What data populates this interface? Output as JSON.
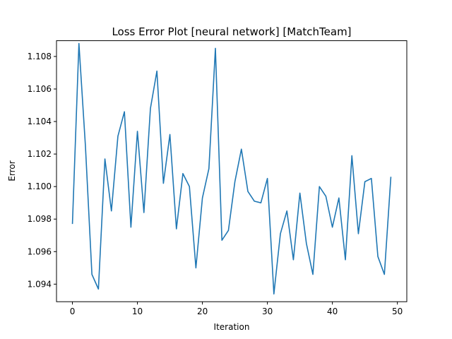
{
  "chart_data": {
    "type": "line",
    "title": "Loss Error Plot [neural network] [MatchTeam]",
    "xlabel": "Iteration",
    "ylabel": "Error",
    "xlim": [
      -2.45,
      51.45
    ],
    "ylim": [
      1.09292,
      1.10897
    ],
    "xticks": [
      0,
      10,
      20,
      30,
      40,
      50
    ],
    "xtick_labels": [
      "0",
      "10",
      "20",
      "30",
      "40",
      "50"
    ],
    "yticks": [
      1.094,
      1.096,
      1.098,
      1.1,
      1.102,
      1.104,
      1.106,
      1.108
    ],
    "ytick_labels": [
      "1.094",
      "1.096",
      "1.098",
      "1.100",
      "1.102",
      "1.104",
      "1.106",
      "1.108"
    ],
    "grid": false,
    "series": [
      {
        "color": "#1f77b4",
        "x": [
          0,
          1,
          2,
          3,
          4,
          5,
          6,
          7,
          8,
          9,
          10,
          11,
          12,
          13,
          14,
          15,
          16,
          17,
          18,
          19,
          20,
          21,
          22,
          23,
          24,
          25,
          26,
          27,
          28,
          29,
          30,
          31,
          32,
          33,
          34,
          35,
          36,
          37,
          38,
          39,
          40,
          41,
          42,
          43,
          44,
          45,
          46,
          47,
          48,
          49
        ],
        "y": [
          1.0977,
          1.1088,
          1.1025,
          1.0946,
          1.0937,
          1.1017,
          1.0985,
          1.1031,
          1.1046,
          1.0975,
          1.1034,
          1.0984,
          1.1048,
          1.1071,
          1.1002,
          1.1032,
          1.0974,
          1.1008,
          1.1,
          1.095,
          1.0993,
          1.1011,
          1.1085,
          1.0967,
          1.0973,
          1.1003,
          1.1023,
          1.0997,
          1.0991,
          1.099,
          1.1005,
          1.0934,
          1.0971,
          1.0985,
          1.0955,
          1.0996,
          1.0965,
          1.0946,
          1.1,
          1.0994,
          1.0975,
          1.0993,
          1.0955,
          1.1019,
          1.0971,
          1.1003,
          1.1005,
          1.0957,
          1.0946,
          1.1006
        ]
      }
    ]
  }
}
